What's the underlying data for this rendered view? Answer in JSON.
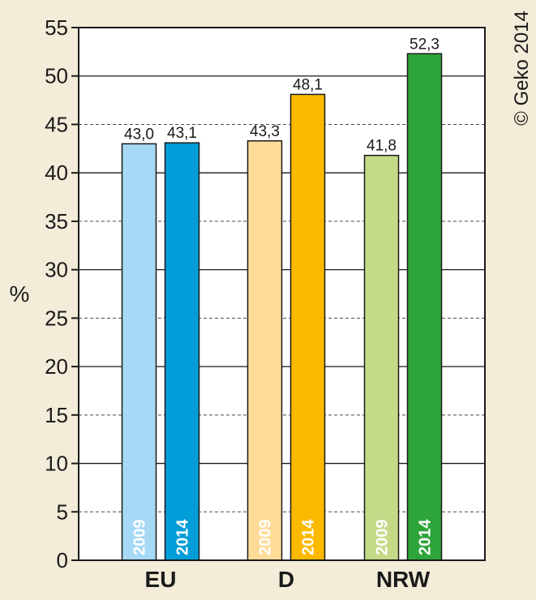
{
  "chart_data": {
    "type": "bar",
    "ylabel": "%",
    "ylim": [
      0,
      55
    ],
    "yticks": [
      0,
      5,
      10,
      15,
      20,
      25,
      30,
      35,
      40,
      45,
      50,
      55
    ],
    "grid": "horizontal: solid at multiples of 10, dashed at odd multiples of 5",
    "categories": [
      "EU",
      "D",
      "NRW"
    ],
    "bar_year_labels": [
      "2009",
      "2014"
    ],
    "groups": [
      {
        "category": "EU",
        "bars": [
          {
            "year": "2009",
            "value": 43.0,
            "label": "43,0",
            "color": "#a6d9f5"
          },
          {
            "year": "2014",
            "value": 43.1,
            "label": "43,1",
            "color": "#009dd8"
          }
        ]
      },
      {
        "category": "D",
        "bars": [
          {
            "year": "2009",
            "value": 43.3,
            "label": "43,3",
            "color": "#fedc98"
          },
          {
            "year": "2014",
            "value": 48.1,
            "label": "48,1",
            "color": "#fbb900"
          }
        ]
      },
      {
        "category": "NRW",
        "bars": [
          {
            "year": "2009",
            "value": 41.8,
            "label": "41,8",
            "color": "#c4da88"
          },
          {
            "year": "2014",
            "value": 52.3,
            "label": "52,3",
            "color": "#2ea53a"
          }
        ]
      }
    ],
    "credit": "© Geko 2014"
  }
}
